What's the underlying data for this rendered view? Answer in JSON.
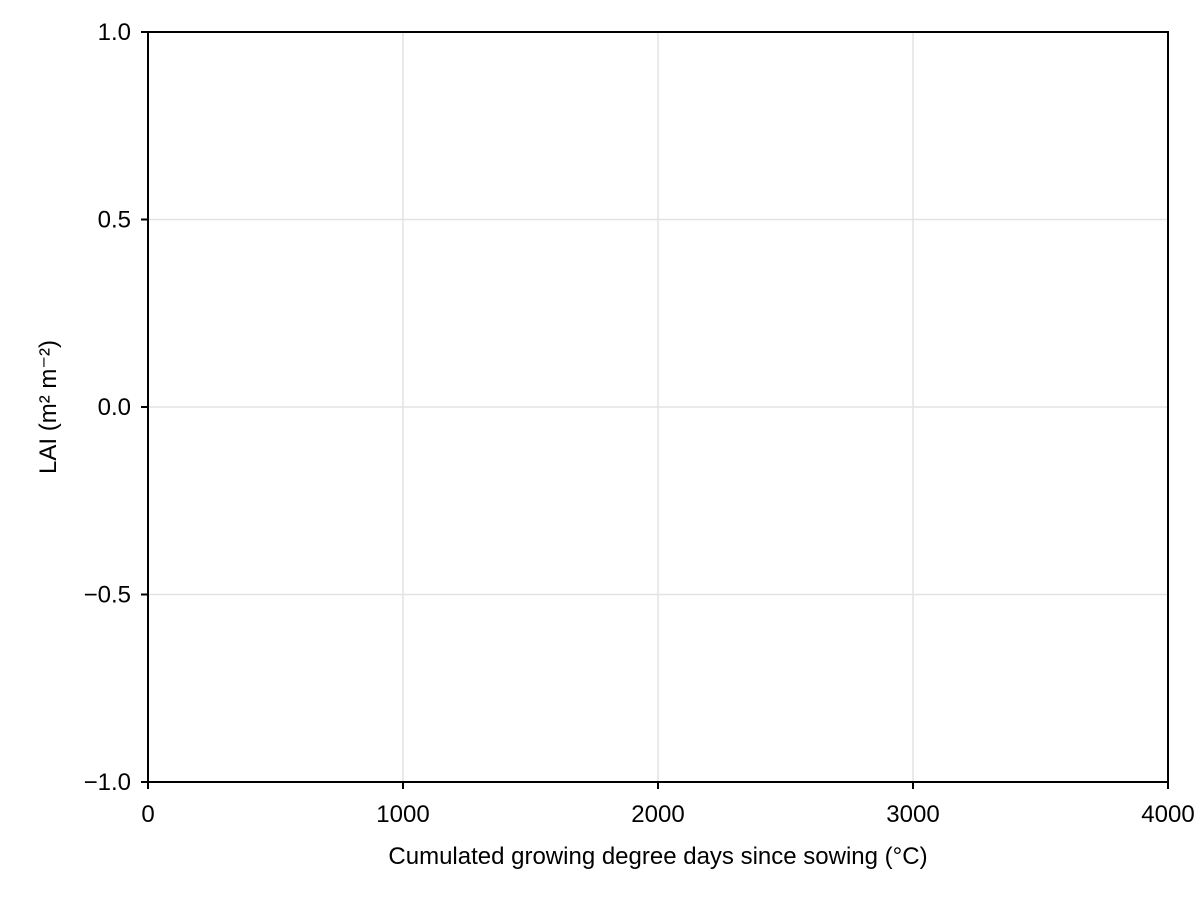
{
  "chart_data": {
    "type": "line",
    "title": "",
    "xlabel": "Cumulated growing degree days since sowing (°C)",
    "ylabel": "LAI (m² m⁻²)",
    "xlim": [
      0,
      4000
    ],
    "ylim": [
      -1.0,
      1.0
    ],
    "x_ticks": [
      {
        "value": 0,
        "label": "0"
      },
      {
        "value": 1000,
        "label": "1000"
      },
      {
        "value": 2000,
        "label": "2000"
      },
      {
        "value": 3000,
        "label": "3000"
      },
      {
        "value": 4000,
        "label": "4000"
      }
    ],
    "y_ticks": [
      {
        "value": -1.0,
        "label": "−1.0"
      },
      {
        "value": -0.5,
        "label": "−0.5"
      },
      {
        "value": 0.0,
        "label": "0.0"
      },
      {
        "value": 0.5,
        "label": "0.5"
      },
      {
        "value": 1.0,
        "label": "1.0"
      }
    ],
    "grid": true,
    "series": [],
    "colors": {
      "grid": "#e3e3e3",
      "frame": "#000000",
      "text": "#000000"
    }
  }
}
